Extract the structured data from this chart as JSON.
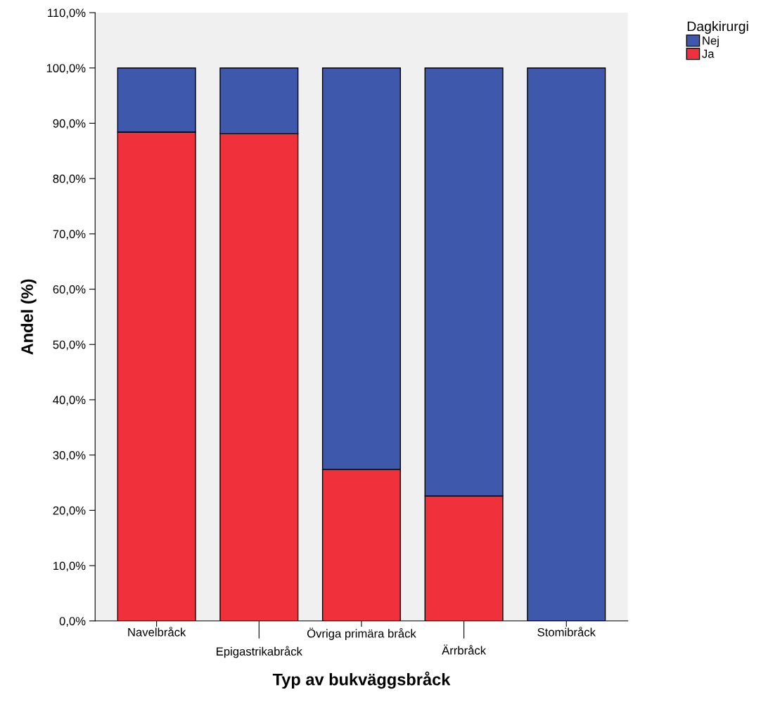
{
  "chart_data": {
    "type": "bar",
    "stacked": true,
    "xlabel": "Typ av bukväggsbråck",
    "ylabel": "Andel (%)",
    "legend_title": "Dagkirurgi",
    "legend": "top right",
    "categories": [
      "Navelbråck",
      "Epigastrikabråck",
      "Övriga primära bråck",
      "Ärrbråck",
      "Stomibråck"
    ],
    "series": [
      {
        "name": "Ja",
        "color": "#f0313b",
        "values": [
          88.4,
          88.1,
          27.4,
          22.6,
          0
        ]
      },
      {
        "name": "Nej",
        "color": "#3e58ac",
        "values": [
          11.6,
          11.9,
          72.6,
          77.4,
          100
        ]
      }
    ],
    "ylim": [
      0,
      110
    ],
    "yticks": [
      {
        "value": 0,
        "label": "0,0%"
      },
      {
        "value": 10,
        "label": "10,0%"
      },
      {
        "value": 20,
        "label": "20,0%"
      },
      {
        "value": 30,
        "label": "30,0%"
      },
      {
        "value": 40,
        "label": "40,0%"
      },
      {
        "value": 50,
        "label": "50,0%"
      },
      {
        "value": 60,
        "label": "60,0%"
      },
      {
        "value": 70,
        "label": "70,0%"
      },
      {
        "value": 80,
        "label": "80,0%"
      },
      {
        "value": 90,
        "label": "90,0%"
      },
      {
        "value": 100,
        "label": "100,0%"
      },
      {
        "value": 110,
        "label": "110,0%"
      }
    ],
    "grid": false
  }
}
